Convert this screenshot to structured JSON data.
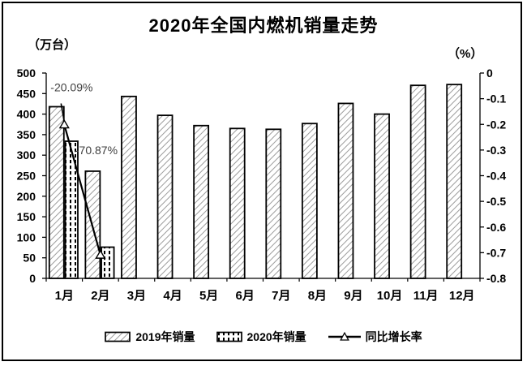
{
  "chart_data": {
    "type": "bar",
    "combo": true,
    "title": "2020年全国内燃机销量走势",
    "left_axis": {
      "title": "（万台）",
      "min": 0,
      "max": 500,
      "step": 50,
      "tick_labels": [
        "500",
        "450",
        "400",
        "350",
        "300",
        "250",
        "200",
        "150",
        "100",
        "50",
        "0"
      ]
    },
    "right_axis": {
      "title": "（%）",
      "min": -0.8,
      "max": 0,
      "step": 0.1,
      "tick_labels": [
        "0",
        "-0.1",
        "-0.2",
        "-0.3",
        "-0.4",
        "-0.5",
        "-0.6",
        "-0.7",
        "-0.8"
      ]
    },
    "categories": [
      "1月",
      "2月",
      "3月",
      "4月",
      "5月",
      "6月",
      "7月",
      "8月",
      "9月",
      "10月",
      "11月",
      "12月"
    ],
    "series": [
      {
        "name": "2019年销量",
        "render": "bar",
        "axis": "left",
        "pattern": "diagonal-hatch",
        "values": [
          418,
          261,
          443,
          397,
          372,
          365,
          363,
          377,
          426,
          400,
          470,
          472
        ]
      },
      {
        "name": "2020年销量",
        "render": "bar",
        "axis": "left",
        "pattern": "vertical-dash",
        "values": [
          334,
          76,
          null,
          null,
          null,
          null,
          null,
          null,
          null,
          null,
          null,
          null
        ]
      },
      {
        "name": "同比增长率",
        "render": "line",
        "axis": "right",
        "marker": "triangle",
        "values": [
          -0.2009,
          -0.7087,
          null,
          null,
          null,
          null,
          null,
          null,
          null,
          null,
          null,
          null
        ]
      }
    ],
    "annotations": [
      {
        "text": "-20.09%",
        "month": 1,
        "value": -0.2009
      },
      {
        "text": "-70.87%",
        "month": 2,
        "value": -0.7087
      }
    ],
    "grid": false,
    "legend_position": "bottom",
    "colors": {
      "axis": "#000000",
      "bar_border": "#000000",
      "hatch": "#9c9c9c",
      "dash_fill": "#000000",
      "line": "#000000",
      "marker_fill": "#ffffff",
      "annotation_text": "#404040"
    }
  }
}
